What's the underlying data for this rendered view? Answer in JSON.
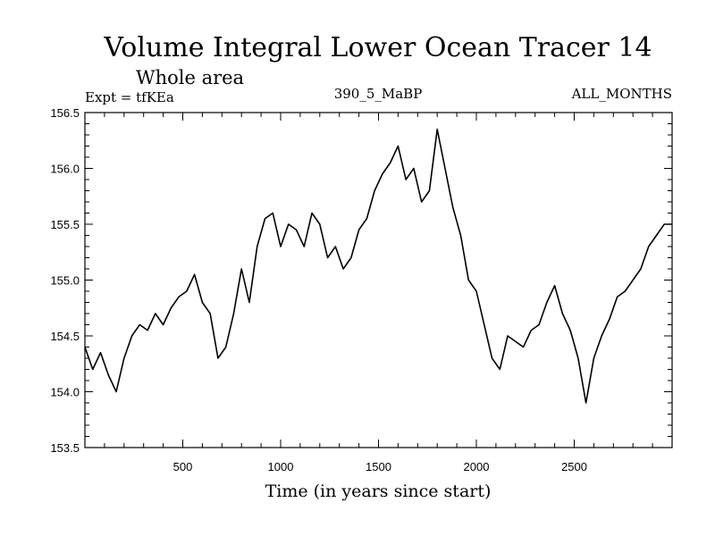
{
  "chart_data": {
    "type": "line",
    "title": "Volume Integral Lower Ocean Tracer 14",
    "subtitle": "Whole area",
    "expt_label": "Expt = tfKEa",
    "center_label": "390_5_MaBP",
    "right_label": "ALL_MONTHS",
    "xlabel": "Time (in years since start)",
    "ylabel": "",
    "xlim": [
      0,
      3000
    ],
    "ylim": [
      153.5,
      156.5
    ],
    "x_ticks": [
      500,
      1000,
      1500,
      2000,
      2500
    ],
    "y_ticks": [
      153.5,
      154.0,
      154.5,
      155.0,
      155.5,
      156.0,
      156.5
    ],
    "series": [
      {
        "color": "#000000",
        "x": [
          0,
          40,
          80,
          120,
          160,
          200,
          240,
          280,
          320,
          360,
          400,
          440,
          480,
          520,
          560,
          600,
          640,
          680,
          720,
          760,
          800,
          840,
          880,
          920,
          960,
          1000,
          1040,
          1080,
          1120,
          1160,
          1200,
          1240,
          1280,
          1320,
          1360,
          1400,
          1440,
          1480,
          1520,
          1560,
          1600,
          1640,
          1680,
          1720,
          1760,
          1800,
          1840,
          1880,
          1920,
          1960,
          2000,
          2040,
          2080,
          2120,
          2160,
          2200,
          2240,
          2280,
          2320,
          2360,
          2400,
          2440,
          2480,
          2520,
          2560,
          2600,
          2640,
          2680,
          2720,
          2760,
          2800,
          2840,
          2880,
          2920,
          2960,
          3000
        ],
        "y": [
          154.4,
          154.2,
          154.35,
          154.15,
          154.0,
          154.3,
          154.5,
          154.6,
          154.55,
          154.7,
          154.6,
          154.75,
          154.85,
          154.9,
          155.05,
          154.8,
          154.7,
          154.3,
          154.4,
          154.7,
          155.1,
          154.8,
          155.3,
          155.55,
          155.6,
          155.3,
          155.5,
          155.45,
          155.3,
          155.6,
          155.5,
          155.2,
          155.3,
          155.1,
          155.2,
          155.45,
          155.55,
          155.8,
          155.95,
          156.05,
          156.2,
          155.9,
          156.0,
          155.7,
          155.8,
          156.35,
          156.0,
          155.65,
          155.4,
          155.0,
          154.9,
          154.6,
          154.3,
          154.2,
          154.5,
          154.45,
          154.4,
          154.55,
          154.6,
          154.8,
          154.95,
          154.7,
          154.55,
          154.3,
          153.9,
          154.3,
          154.5,
          154.65,
          154.85,
          154.9,
          155.0,
          155.1,
          155.3,
          155.4,
          155.5,
          155.5
        ]
      }
    ],
    "grid": false,
    "legend": "none"
  }
}
